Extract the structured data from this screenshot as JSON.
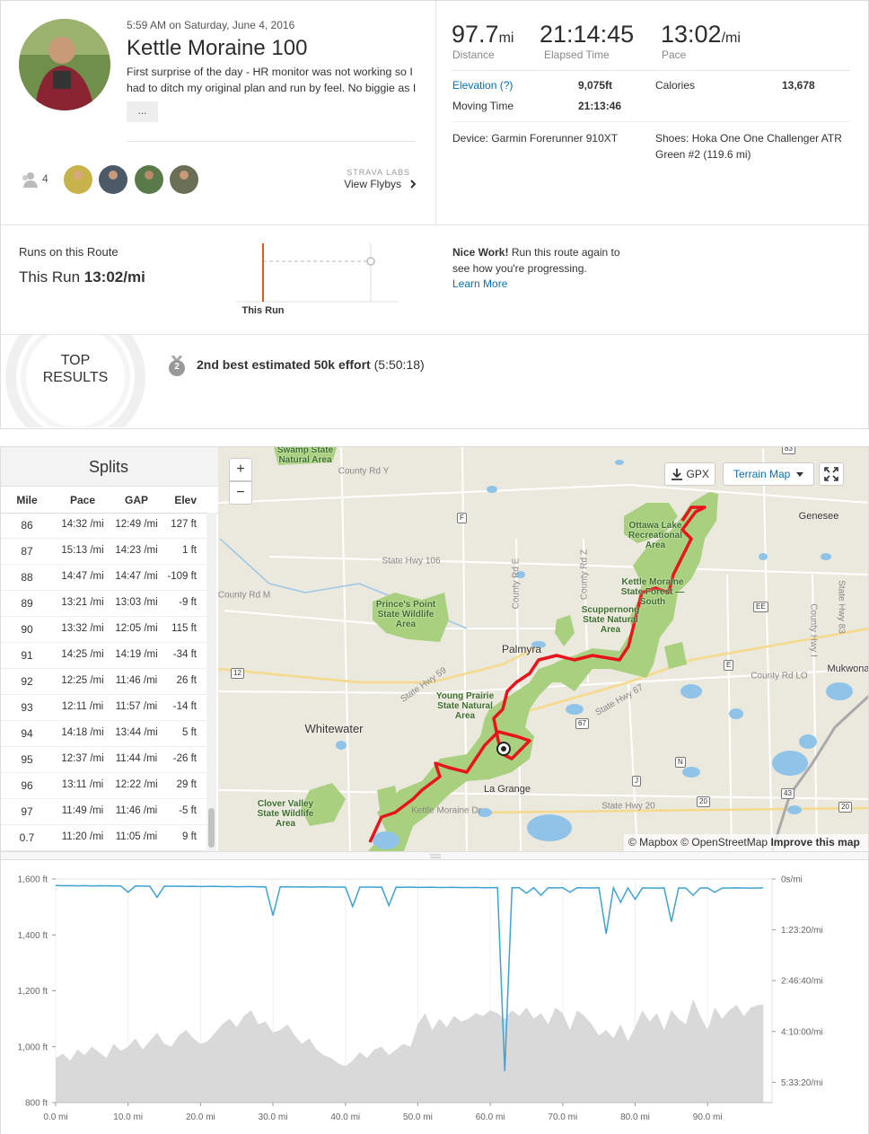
{
  "activity": {
    "date": "5:59 AM on Saturday, June 4, 2016",
    "title": "Kettle Moraine 100",
    "description": "First surprise of the day - HR monitor was not working so I had to ditch my original plan and run by feel. No biggie as I",
    "more": "...",
    "kudos_count": "4",
    "labs": "STRAVA LABS",
    "flybys": "View Flybys"
  },
  "stats": {
    "distance": "97.7",
    "distance_unit": "mi",
    "distance_label": "Distance",
    "elapsed": "21:14:45",
    "elapsed_label": "Elapsed Time",
    "pace": "13:02",
    "pace_unit": "/mi",
    "pace_label": "Pace",
    "elevation_label": "Elevation (?)",
    "elevation": "9,075ft",
    "calories_label": "Calories",
    "calories": "13,678",
    "moving_label": "Moving Time",
    "moving": "21:13:46",
    "device": "Device: Garmin Forerunner 910XT",
    "shoes": "Shoes: Hoka One One Challenger ATR Green #2 (119.6 mi)"
  },
  "route": {
    "title": "Runs on this Route",
    "this_run": "This Run",
    "this_run_pace": "13:02/mi",
    "chart_label": "This Run",
    "nice": "Nice Work!",
    "message": "Run this route again to see how you're progressing.",
    "learn_more": "Learn More"
  },
  "top_results": {
    "top": "TOP",
    "results": "RESULTS",
    "rank": "2",
    "effort": "2nd best estimated 50k effort",
    "time": "(5:50:18)"
  },
  "splits": {
    "title": "Splits",
    "columns": [
      "Mile",
      "Pace",
      "GAP",
      "Elev"
    ],
    "rows": [
      [
        "86",
        "14:32 /mi",
        "12:49 /mi",
        "127 ft"
      ],
      [
        "87",
        "15:13 /mi",
        "14:23 /mi",
        "1 ft"
      ],
      [
        "88",
        "14:47 /mi",
        "14:47 /mi",
        "-109 ft"
      ],
      [
        "89",
        "13:21 /mi",
        "13:03 /mi",
        "-9 ft"
      ],
      [
        "90",
        "13:32 /mi",
        "12:05 /mi",
        "115 ft"
      ],
      [
        "91",
        "14:25 /mi",
        "14:19 /mi",
        "-34 ft"
      ],
      [
        "92",
        "12:25 /mi",
        "11:46 /mi",
        "26 ft"
      ],
      [
        "93",
        "12:11 /mi",
        "11:57 /mi",
        "-14 ft"
      ],
      [
        "94",
        "14:18 /mi",
        "13:44 /mi",
        "5 ft"
      ],
      [
        "95",
        "12:37 /mi",
        "11:44 /mi",
        "-26 ft"
      ],
      [
        "96",
        "13:11 /mi",
        "12:22 /mi",
        "29 ft"
      ],
      [
        "97",
        "11:49 /mi",
        "11:46 /mi",
        "-5 ft"
      ],
      [
        "0.7",
        "11:20 /mi",
        "11:05 /mi",
        "9 ft"
      ]
    ]
  },
  "map": {
    "zoom_in": "+",
    "zoom_out": "−",
    "gpx": "GPX",
    "layer": "Terrain Map",
    "attribution": "© Mapbox © OpenStreetMap",
    "improve": "Improve this map",
    "parks": [
      "Swamp State Natural Area",
      "Prince's Point State Wildlife Area",
      "Young Prairie State Natural Area",
      "Clover Valley State Wildlife Area",
      "Ottawa Lake Recreational Area",
      "Kettle Moraine State Forest — South",
      "Scuppernong State Natural Area"
    ],
    "towns": [
      "Palmyra",
      "Whitewater",
      "La Grange",
      "Genesee",
      "Mukwona"
    ],
    "roads": [
      "County Rd Y",
      "State Hwy 106",
      "County Rd M",
      "State Hwy 59",
      "State Hwy 67",
      "Kettle Moraine Dr",
      "State Hwy 20",
      "County Rd LO",
      "County Rd Z",
      "County Rd E",
      "County Hwy I",
      "State Hwy 83"
    ],
    "shields": [
      "F",
      "E",
      "N",
      "J",
      "12",
      "67",
      "20",
      "20",
      "43",
      "EE",
      "83"
    ]
  },
  "chart_data": {
    "type": "line",
    "grid": true,
    "x": [
      0,
      1,
      2,
      3,
      4,
      5,
      6,
      7,
      8,
      9,
      10,
      11,
      12,
      13,
      14,
      15,
      16,
      17,
      18,
      19,
      20,
      21,
      22,
      23,
      24,
      25,
      26,
      27,
      28,
      29,
      30,
      31,
      32,
      33,
      34,
      35,
      36,
      37,
      38,
      39,
      40,
      41,
      42,
      43,
      44,
      45,
      46,
      47,
      48,
      49,
      50,
      51,
      52,
      53,
      54,
      55,
      56,
      57,
      58,
      59,
      60,
      61,
      62,
      63,
      64,
      65,
      66,
      67,
      68,
      69,
      70,
      71,
      72,
      73,
      74,
      75,
      76,
      77,
      78,
      79,
      80,
      81,
      82,
      83,
      84,
      85,
      86,
      87,
      88,
      89,
      90,
      91,
      92,
      93,
      94,
      95,
      96,
      97,
      97.7
    ],
    "series": [
      {
        "type": "area",
        "color": "#d9d9d9",
        "values": [
          960,
          975,
          950,
          990,
          970,
          1000,
          980,
          960,
          1010,
          985,
          1000,
          1030,
          990,
          1020,
          1050,
          1010,
          1000,
          1040,
          1060,
          1030,
          1010,
          1020,
          1050,
          1080,
          1100,
          1070,
          1110,
          1130,
          1080,
          1090,
          1050,
          1060,
          1080,
          1040,
          1010,
          1030,
          990,
          970,
          960,
          940,
          930,
          950,
          980,
          960,
          990,
          1000,
          970,
          990,
          1010,
          1000,
          1080,
          1120,
          1060,
          1100,
          1070,
          1110,
          1090,
          1100,
          1120,
          1110,
          1130,
          1120,
          1100,
          1130,
          1110,
          1140,
          1100,
          1120,
          1080,
          1140,
          1120,
          1060,
          1130,
          1110,
          1080,
          1040,
          1060,
          1030,
          1080,
          1020,
          1070,
          1130,
          1090,
          1120,
          1060,
          1130,
          1100,
          1080,
          1170,
          1110,
          1060,
          1140,
          1100,
          1130,
          1150,
          1110,
          1140,
          1150,
          1150
        ]
      },
      {
        "type": "line",
        "axis": "y2",
        "color": "#3fa2d4",
        "values": [
          640,
          660,
          650,
          670,
          655,
          680,
          665,
          670,
          690,
          680,
          1300,
          690,
          700,
          710,
          1800,
          700,
          720,
          710,
          730,
          720,
          740,
          730,
          720,
          750,
          740,
          760,
          750,
          740,
          770,
          760,
          3600,
          770,
          760,
          780,
          770,
          790,
          780,
          770,
          800,
          790,
          810,
          2700,
          800,
          790,
          810,
          800,
          2600,
          810,
          820,
          800,
          830,
          820,
          810,
          840,
          830,
          820,
          850,
          840,
          830,
          860,
          850,
          840,
          18900,
          850,
          860,
          1400,
          850,
          1600,
          860,
          870,
          850,
          1300,
          860,
          870,
          880,
          860,
          5400,
          870,
          2300,
          880,
          2000,
          870,
          880,
          890,
          870,
          4200,
          880,
          890,
          1600,
          880,
          870,
          1300,
          890,
          880,
          870,
          880,
          890,
          880,
          870
        ]
      }
    ],
    "xlim": [
      0,
      98.9
    ],
    "xticks": [
      {
        "value": 0,
        "label": "0.0 mi"
      },
      {
        "value": 10,
        "label": "10.0 mi"
      },
      {
        "value": 20,
        "label": "20.0 mi"
      },
      {
        "value": 30,
        "label": "30.0 mi"
      },
      {
        "value": 40,
        "label": "40.0 mi"
      },
      {
        "value": 50,
        "label": "50.0 mi"
      },
      {
        "value": 60,
        "label": "60.0 mi"
      },
      {
        "value": 70,
        "label": "70.0 mi"
      },
      {
        "value": 80,
        "label": "80.0 mi"
      },
      {
        "value": 90,
        "label": "90.0 mi"
      }
    ],
    "ylim": [
      800,
      1600
    ],
    "yticks": [
      {
        "value": 800,
        "label": "800 ft"
      },
      {
        "value": 1000,
        "label": "1,000 ft"
      },
      {
        "value": 1200,
        "label": "1,200 ft"
      },
      {
        "value": 1400,
        "label": "1,400 ft"
      },
      {
        "value": 1600,
        "label": "1,600 ft"
      }
    ],
    "y2lim": [
      22000,
      0
    ],
    "y2ticks": [
      {
        "value": 0,
        "label": "0s/mi"
      },
      {
        "value": 5000,
        "label": "1:23:20/mi"
      },
      {
        "value": 10000,
        "label": "2:46:40/mi"
      },
      {
        "value": 15000,
        "label": "4:10:00/mi"
      },
      {
        "value": 20000,
        "label": "5:33:20/mi"
      }
    ]
  }
}
